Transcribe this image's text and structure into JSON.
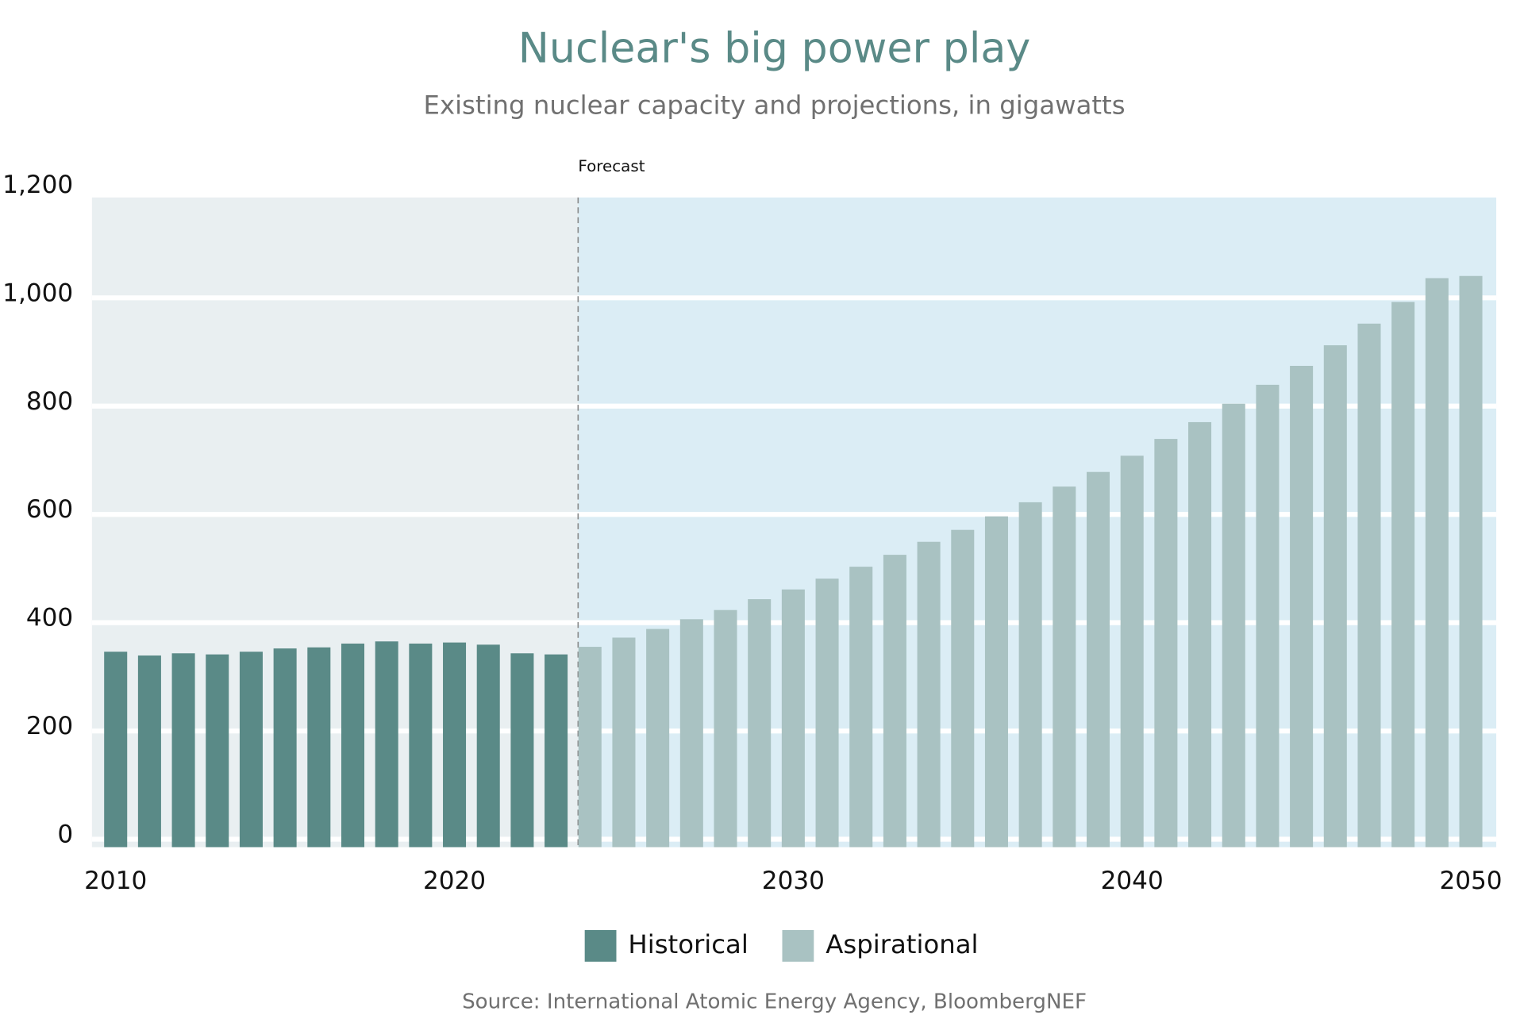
{
  "chart_data": {
    "type": "bar",
    "title": "Nuclear's big power play",
    "subtitle": "Existing nuclear capacity and projections, in gigawatts",
    "source": "Source: International Atomic Energy Agency, BloombergNEF",
    "annotation": {
      "text": "Forecast",
      "x": 2023.65
    },
    "x": [
      2010,
      2011,
      2012,
      2013,
      2014,
      2015,
      2016,
      2017,
      2018,
      2019,
      2020,
      2021,
      2022,
      2023,
      2024,
      2025,
      2026,
      2027,
      2028,
      2029,
      2030,
      2031,
      2032,
      2033,
      2034,
      2035,
      2036,
      2037,
      2038,
      2039,
      2040,
      2041,
      2042,
      2043,
      2044,
      2045,
      2046,
      2047,
      2048,
      2049,
      2050
    ],
    "series": [
      {
        "name": "Historical",
        "color": "#5a8a87",
        "values": [
          361,
          354,
          358,
          356,
          361,
          367,
          369,
          376,
          380,
          376,
          378,
          374,
          358,
          356,
          null,
          null,
          null,
          null,
          null,
          null,
          null,
          null,
          null,
          null,
          null,
          null,
          null,
          null,
          null,
          null,
          null,
          null,
          null,
          null,
          null,
          null,
          null,
          null,
          null,
          null,
          null
        ]
      },
      {
        "name": "Aspirational",
        "color": "#a9c2c2",
        "values": [
          null,
          null,
          null,
          null,
          null,
          null,
          null,
          null,
          null,
          null,
          null,
          null,
          null,
          null,
          370,
          387,
          403,
          421,
          438,
          458,
          476,
          496,
          518,
          540,
          564,
          586,
          611,
          637,
          666,
          693,
          723,
          754,
          785,
          819,
          854,
          889,
          927,
          967,
          1007,
          1051,
          1055
        ]
      }
    ],
    "xlim": [
      2009.3,
      2050.75
    ],
    "xticks": [
      2010,
      2020,
      2030,
      2040,
      2050
    ],
    "ylim": [
      0,
      1200
    ],
    "yticks": [
      0,
      200,
      400,
      600,
      800,
      {
        "value": 1000,
        "label": "1,000"
      },
      {
        "value": 1200,
        "label": "1,200"
      }
    ],
    "grid": true
  }
}
